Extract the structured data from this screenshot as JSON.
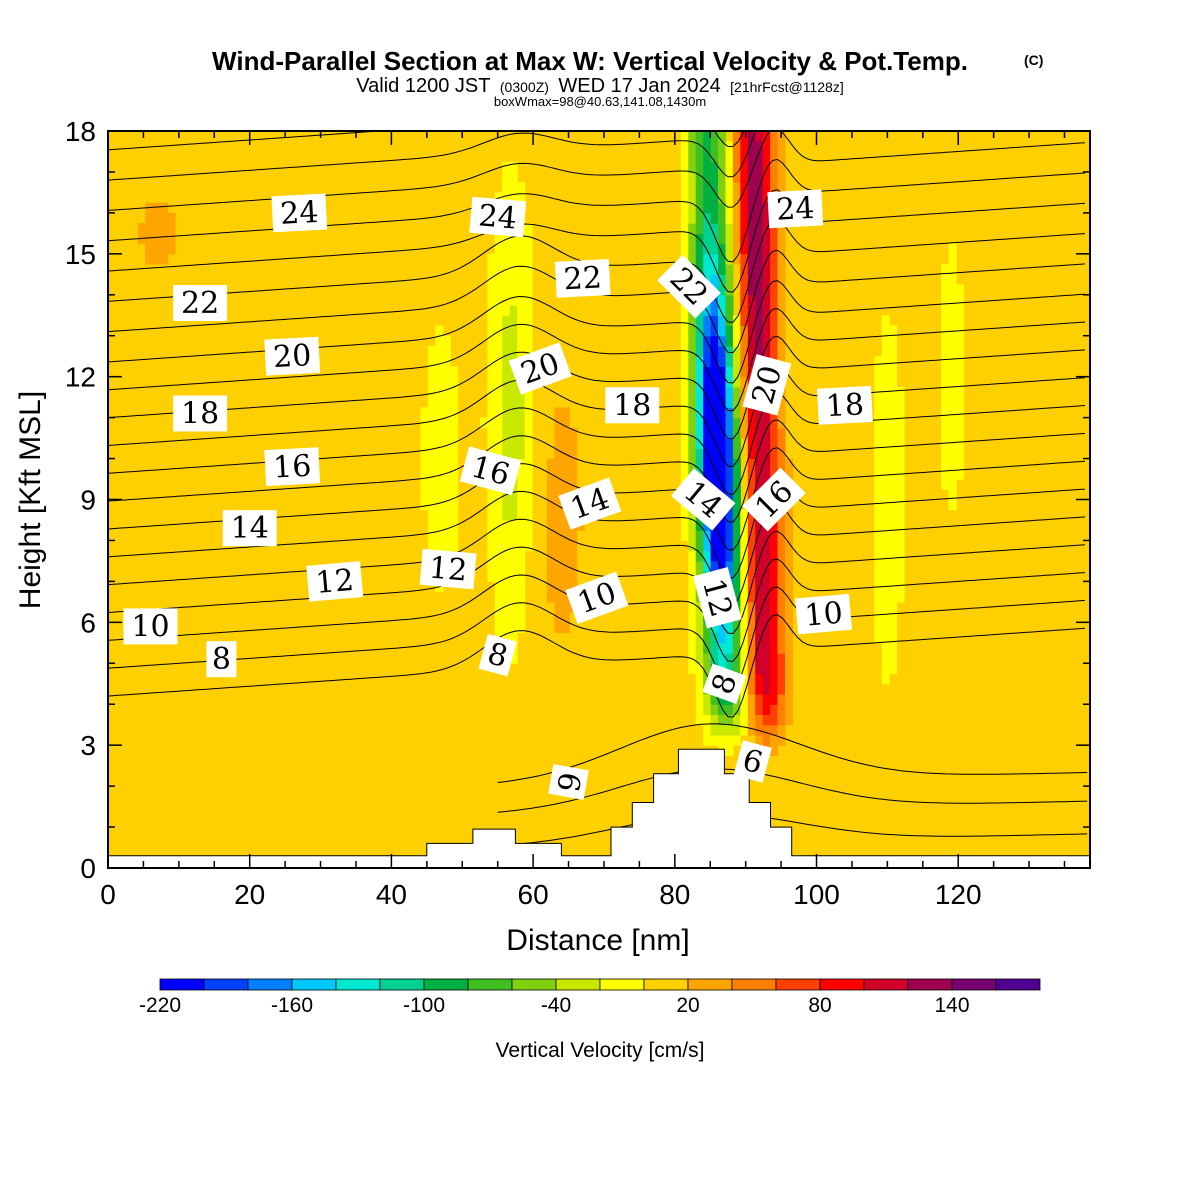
{
  "chart_data": {
    "type": "heatmap",
    "title": "Wind-Parallel Section at Max W: Vertical Velocity & Pot.Temp.",
    "title_mark": "(C)",
    "subtitle_valid": "Valid 1200 JST",
    "subtitle_utc": "(0300Z)",
    "subtitle_date": "WED 17 Jan 2024",
    "subtitle_fcst": "[21hrFcst@1128z]",
    "subtitle_box": "boxWmax=98@40.63,141.08,1430m",
    "xlabel": "Distance [nm]",
    "ylabel": "Height [Kft MSL]",
    "xlim": [
      0,
      138.6
    ],
    "ylim": [
      0,
      18
    ],
    "x_ticks": [
      "0",
      "20",
      "40",
      "60",
      "80",
      "100",
      "120"
    ],
    "y_ticks": [
      "0",
      "3",
      "6",
      "9",
      "12",
      "15",
      "18"
    ],
    "colorbar": {
      "title": "Vertical Velocity [cm/s]",
      "tick_labels": [
        "-220",
        "-160",
        "-100",
        "-40",
        "20",
        "80",
        "140"
      ],
      "tick_values": [
        -220,
        -160,
        -100,
        -40,
        20,
        80,
        140
      ],
      "min": -220,
      "max": 180,
      "step": 20,
      "colors": [
        "#0000ff",
        "#0040ff",
        "#0080ff",
        "#00c8ff",
        "#00e8d0",
        "#00d090",
        "#00b040",
        "#40c020",
        "#80d010",
        "#c8e800",
        "#ffff00",
        "#ffd000",
        "#ffa500",
        "#ff8000",
        "#ff4000",
        "#ff0000",
        "#d0002a",
        "#a00050",
        "#780070",
        "#500090"
      ]
    },
    "theta_contour_labels": [
      "6",
      "8",
      "10",
      "12",
      "14",
      "16",
      "18",
      "20",
      "22",
      "24"
    ],
    "terrain_profile": {
      "x": [
        0,
        45,
        45,
        51.5,
        51.5,
        57.5,
        57.5,
        64,
        64,
        71,
        71,
        74,
        74,
        77,
        77,
        80.5,
        80.5,
        87,
        87,
        90.5,
        90.5,
        93.5,
        93.5,
        96.5,
        96.5,
        138.6
      ],
      "y": [
        0.3,
        0.3,
        0.6,
        0.6,
        0.95,
        0.95,
        0.6,
        0.6,
        0.3,
        0.3,
        1.0,
        1.0,
        1.6,
        1.6,
        2.3,
        2.3,
        2.9,
        2.9,
        2.3,
        2.3,
        1.6,
        1.6,
        1.0,
        1.0,
        0.3,
        0.3
      ]
    }
  }
}
